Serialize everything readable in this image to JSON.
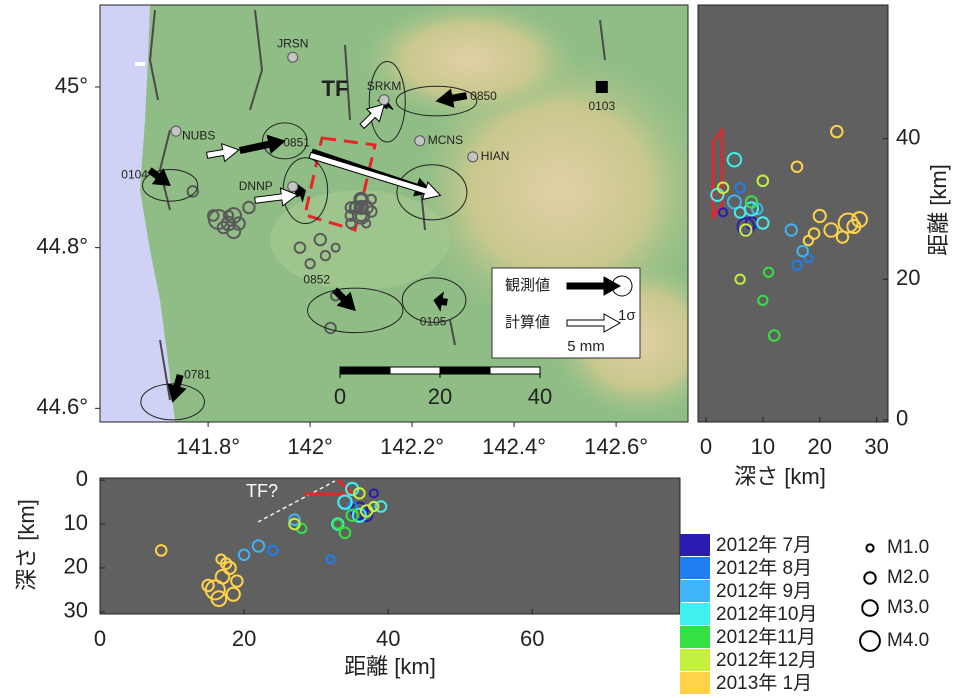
{
  "map": {
    "xlim": [
      141.588,
      142.741
    ],
    "ylim": [
      44.583,
      45.102
    ],
    "xticks": [
      {
        "value": 141.8,
        "label": "141.8°"
      },
      {
        "value": 142.0,
        "label": "142°"
      },
      {
        "value": 142.2,
        "label": "142.2°"
      },
      {
        "value": 142.4,
        "label": "142.4°"
      },
      {
        "value": 142.6,
        "label": "142.6°"
      }
    ],
    "yticks": [
      {
        "value": 44.6,
        "label": "44.6°"
      },
      {
        "value": 44.8,
        "label": "44.8°"
      },
      {
        "value": 45.0,
        "label": "45°"
      }
    ],
    "fault_label": "TF",
    "stations": [
      {
        "label": "JRSN",
        "lon": 141.966,
        "lat": 45.037,
        "marker": "circle"
      },
      {
        "label": "NUBS",
        "lon": 141.737,
        "lat": 44.945,
        "marker": "circle"
      },
      {
        "label": "DNNP",
        "lon": 141.966,
        "lat": 44.876,
        "marker": "circle"
      },
      {
        "label": "SRKM",
        "lon": 142.145,
        "lat": 44.984,
        "marker": "circle"
      },
      {
        "label": "MCNS",
        "lon": 142.215,
        "lat": 44.933,
        "marker": "circle"
      },
      {
        "label": "HIAN",
        "lon": 142.319,
        "lat": 44.913,
        "marker": "circle"
      },
      {
        "label": "0103",
        "lon": 142.572,
        "lat": 45.0,
        "marker": "square"
      }
    ],
    "observed": [
      {
        "label": "0851",
        "lon": 141.863,
        "lat": 44.921,
        "east": 4.2,
        "north": 0.9,
        "error": [
          2.1,
          1.7
        ]
      },
      {
        "lon": 142.004,
        "lat": 44.919,
        "east": 11.3,
        "north": -3.8,
        "error": [
          3.3,
          2.6
        ]
      },
      {
        "label": "0850",
        "lon": 142.306,
        "lat": 44.989,
        "east": -2.8,
        "north": -0.5,
        "error": [
          3.8,
          1.4
        ]
      },
      {
        "label": "0104",
        "lon": 141.686,
        "lat": 44.896,
        "east": 1.9,
        "north": -1.4,
        "error": [
          2.6,
          1.5
        ]
      },
      {
        "label": "0852",
        "lon": 142.049,
        "lat": 44.747,
        "east": 1.9,
        "north": -1.9,
        "error": [
          4.5,
          2.1
        ]
      },
      {
        "label": "0105",
        "lon": 142.268,
        "lat": 44.732,
        "east": -1.2,
        "north": 0.2,
        "error": [
          3.0,
          2.1
        ]
      },
      {
        "label": "0781",
        "lon": 141.745,
        "lat": 44.641,
        "east": -0.7,
        "north": -2.5,
        "error": [
          3.0,
          1.7
        ]
      },
      {
        "lon": 142.145,
        "lat": 44.975,
        "east": 0.3,
        "north": 0.5,
        "error": [
          1.7,
          3.8
        ]
      },
      {
        "lon": 141.972,
        "lat": 44.867,
        "east": 0.9,
        "north": 0.3,
        "error": [
          2.1,
          3.1
        ]
      }
    ],
    "calculated": [
      {
        "lon": 141.798,
        "lat": 44.915,
        "east": 3.0,
        "north": 0.5
      },
      {
        "lon": 141.892,
        "lat": 44.859,
        "east": 4.0,
        "north": 0.5
      },
      {
        "lon": 142.102,
        "lat": 44.951,
        "east": 2.1,
        "north": 2.1
      },
      {
        "lon": 142.0,
        "lat": 44.915,
        "east": 12.3,
        "north": -3.8
      }
    ],
    "vector_legend": {
      "observed_label": "観測値",
      "calculated_label": "計算値",
      "sigma_label": "1σ",
      "length": {
        "value": 5,
        "label": "5 mm"
      }
    },
    "scale_bar": [
      0,
      20,
      40
    ]
  },
  "depth_section": {
    "xlabel": "深さ [km]",
    "ylabel": "距離 [km]",
    "xlim": [
      -1.4,
      32
    ],
    "ylim": [
      -0.3,
      59
    ],
    "xticks": [
      0,
      10,
      20,
      30
    ],
    "yticks": [
      0,
      20,
      40
    ]
  },
  "distance_section": {
    "xlabel": "距離 [km]",
    "ylabel": "深さ [km]",
    "xlim": [
      0,
      80.5
    ],
    "ylim": [
      -0.5,
      30.5
    ],
    "inverted": true,
    "xticks": [
      0,
      20,
      40,
      60
    ],
    "yticks": [
      0,
      10,
      20,
      30
    ],
    "annotation": "TF?"
  },
  "legend": {
    "periods": [
      {
        "label": "2012年 7月",
        "color": "#2b1cb0"
      },
      {
        "label": "2012年 8月",
        "color": "#1f7ef0"
      },
      {
        "label": "2012年 9月",
        "color": "#3fb4f6"
      },
      {
        "label": "2012年10月",
        "color": "#3ff0ee"
      },
      {
        "label": "2012年11月",
        "color": "#35e042"
      },
      {
        "label": "2012年12月",
        "color": "#c4f040"
      },
      {
        "label": "2013年 1月",
        "color": "#ffd24a"
      }
    ],
    "magnitudes": [
      {
        "value": 1,
        "label": "M1.0"
      },
      {
        "value": 2,
        "label": "M2.0"
      },
      {
        "value": 3,
        "label": "M3.0"
      },
      {
        "value": 4,
        "label": "M4.0"
      }
    ]
  },
  "earthquakes": {
    "longitude": [
      141.82,
      141.84,
      141.85,
      141.83,
      141.86,
      141.81,
      141.85,
      141.84,
      141.77,
      141.88,
      142.1,
      142.09,
      142.11,
      142.05,
      142.0,
      142.12,
      142.02,
      142.1,
      142.08,
      141.98,
      142.1,
      142.11,
      142.09,
      142.1,
      142.12,
      142.1,
      142.08,
      142.05,
      142.04,
      142.1,
      142.08,
      142.03,
      142.1
    ],
    "latitude": [
      44.835,
      44.83,
      44.84,
      44.825,
      44.83,
      44.84,
      44.82,
      44.84,
      44.87,
      44.85,
      44.84,
      44.85,
      44.83,
      44.8,
      44.78,
      44.86,
      44.81,
      44.85,
      44.84,
      44.8,
      44.86,
      44.85,
      44.85,
      44.84,
      44.845,
      44.85,
      44.83,
      44.74,
      44.7,
      44.84,
      44.85,
      44.79,
      44.86
    ],
    "depth": [
      25,
      22,
      27,
      24,
      20,
      19,
      26,
      18,
      16,
      23,
      7,
      8,
      3,
      18,
      16,
      6,
      15,
      5,
      9,
      17,
      5,
      8,
      2,
      10,
      6,
      8,
      11,
      10,
      12,
      7,
      10,
      6,
      3
    ],
    "distance_section": [
      16,
      17,
      16.5,
      15,
      18,
      17.5,
      18.5,
      16.8,
      8.5,
      19,
      36,
      37,
      38,
      32,
      24,
      35,
      22,
      34,
      27,
      20,
      34,
      36,
      35,
      33,
      39,
      35,
      28,
      33,
      34,
      37,
      27,
      38,
      36
    ],
    "distance_right": [
      28,
      27,
      28.5,
      26,
      29,
      26.5,
      27.5,
      25.5,
      36,
      41,
      27.5,
      28,
      29.5,
      23,
      22,
      33,
      27,
      31,
      30,
      24,
      37,
      30,
      32,
      28,
      29.5,
      31,
      21,
      17,
      12,
      27,
      34,
      20,
      33
    ],
    "magnitude": [
      3.8,
      2.5,
      2.8,
      2.0,
      2.2,
      1.8,
      2.4,
      1.5,
      1.8,
      2.0,
      3.2,
      2.0,
      1.2,
      1.2,
      1.5,
      1.5,
      2.0,
      2.4,
      1.8,
      1.8,
      2.5,
      2.4,
      2.2,
      2.0,
      1.8,
      2.0,
      1.5,
      1.5,
      1.8,
      2.0,
      1.8,
      1.5,
      1.8
    ],
    "period": [
      "2013年 1月",
      "2013年 1月",
      "2013年 1月",
      "2013年 1月",
      "2013年 1月",
      "2013年 1月",
      "2013年 1月",
      "2013年 1月",
      "2013年 1月",
      "2013年 1月",
      "2012年 7月",
      "2012年 7月",
      "2012年 7月",
      "2012年 8月",
      "2012年 8月",
      "2012年 8月",
      "2012年 9月",
      "2012年 9月",
      "2012年 9月",
      "2012年 9月",
      "2012年10月",
      "2012年10月",
      "2012年10月",
      "2012年10月",
      "2012年10月",
      "2012年11月",
      "2012年11月",
      "2012年11月",
      "2012年11月",
      "2012年12月",
      "2012年12月",
      "2012年12月",
      "2012年12月"
    ]
  }
}
